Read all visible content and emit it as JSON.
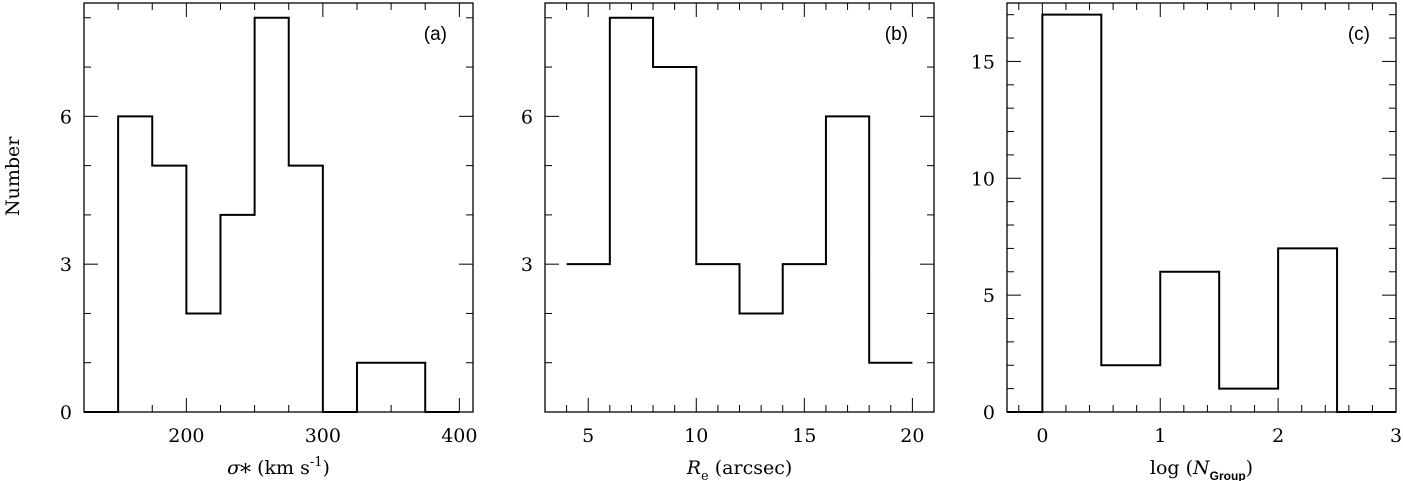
{
  "figure": {
    "ylabel": "Number"
  },
  "chart_data": [
    {
      "type": "bar",
      "panel_label": "(a)",
      "xlabel": {
        "symbol": "σ",
        "sub": "*",
        "rest": " (km s",
        "sup": "-1",
        "close": ")"
      },
      "xlim": [
        125,
        410
      ],
      "ylim": [
        0,
        8.3
      ],
      "xticks": [
        200,
        300,
        400
      ],
      "yticks": [
        0,
        3,
        6
      ],
      "x_minor": 25,
      "y_minor": 1,
      "bin_edges": [
        125,
        150,
        175,
        200,
        225,
        250,
        275,
        300,
        325,
        350,
        375,
        400
      ],
      "values": [
        0,
        6,
        5,
        2,
        4,
        8,
        5,
        0,
        1,
        1,
        0
      ]
    },
    {
      "type": "bar",
      "panel_label": "(b)",
      "xlabel": {
        "symbol": "R",
        "sub": "e",
        "rest": " (arcsec)",
        "sup": "",
        "close": ""
      },
      "xlim": [
        3,
        21
      ],
      "ylim": [
        0,
        8.3
      ],
      "xticks": [
        5,
        10,
        15,
        20
      ],
      "yticks": [
        3,
        6
      ],
      "x_minor": 1,
      "y_minor": 1,
      "bin_edges": [
        4,
        6,
        8,
        10,
        12,
        14,
        16,
        18,
        20
      ],
      "values": [
        3,
        8,
        7,
        3,
        2,
        3,
        6,
        1
      ]
    },
    {
      "type": "bar",
      "panel_label": "(c)",
      "xlabel": {
        "symbol": "",
        "sub": "",
        "rest": "",
        "pre": "log (",
        "italic": "N",
        "isub": "Group",
        "close": ")"
      },
      "xlim": [
        -0.3,
        3.0
      ],
      "ylim": [
        0,
        17.5
      ],
      "xticks": [
        0,
        1,
        2,
        3
      ],
      "yticks": [
        0,
        5,
        10,
        15
      ],
      "x_minor": 0.2,
      "y_minor": 1,
      "bin_edges": [
        -0.3,
        0,
        0.5,
        1.0,
        1.5,
        2.0,
        2.5,
        3.0
      ],
      "values": [
        0,
        17,
        2,
        6,
        1,
        7,
        0
      ]
    }
  ]
}
